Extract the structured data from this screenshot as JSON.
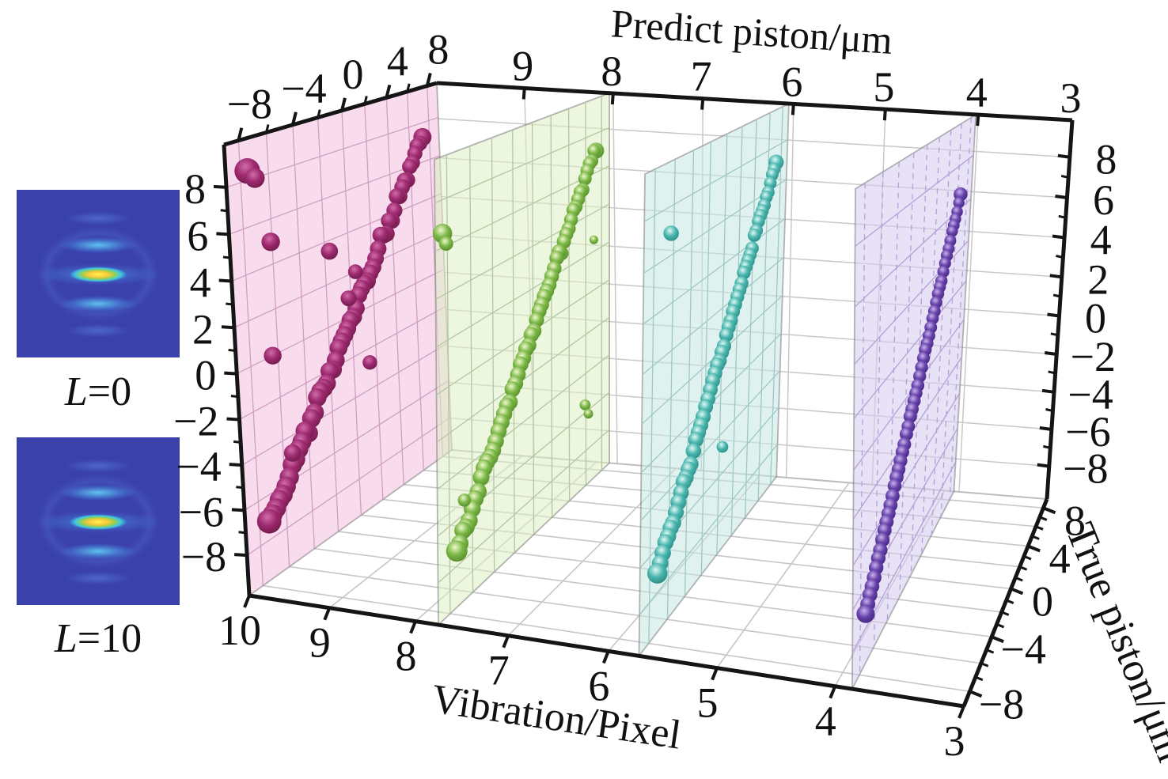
{
  "figure": {
    "axes": {
      "predict": {
        "title": "Predict piston/μm",
        "tick_labels": [
          8,
          6,
          4,
          2,
          0,
          -2,
          -4,
          -6,
          -8
        ],
        "range": [
          -8,
          8
        ],
        "major_step": 2,
        "minor_step": 1
      },
      "vibration": {
        "title": "Vibration/Pixel",
        "tick_labels_bottom": [
          10,
          9,
          8,
          7,
          6,
          5,
          4,
          3
        ],
        "tick_labels_top": [
          9,
          8,
          7,
          6,
          5,
          4,
          3
        ],
        "range": [
          3,
          10
        ]
      },
      "true_piston": {
        "title": "True piston/μm",
        "tick_labels_right": [
          8,
          4,
          0,
          -4,
          -8
        ],
        "tick_labels_top_left": [
          -8,
          -4,
          0,
          4,
          8
        ],
        "range": [
          -8,
          8
        ],
        "major_step": 4,
        "minor_step": 1
      }
    },
    "insets": [
      {
        "label": "L=0",
        "label_var": "L",
        "label_eq": "=0"
      },
      {
        "label": "L=10",
        "label_var": "L",
        "label_eq": "=10"
      }
    ],
    "chart_data": {
      "type": "scatter",
      "projection": "3d",
      "description": "Predicted piston versus true piston at four vibration levels; each translucent vertical plane is one vibration value, points lie along the identity line with sparse outliers",
      "x_axis": {
        "label": "Vibration/Pixel",
        "range": [
          3,
          10
        ],
        "ticks": [
          3,
          4,
          5,
          6,
          7,
          8,
          9,
          10
        ]
      },
      "y_axis": {
        "label": "True piston/μm",
        "range": [
          -8,
          8
        ],
        "ticks": [
          -8,
          -4,
          0,
          4,
          8
        ]
      },
      "z_axis": {
        "label": "Predict piston/μm",
        "range": [
          -8,
          8
        ],
        "ticks": [
          -8,
          -6,
          -4,
          -2,
          0,
          2,
          4,
          6,
          8
        ]
      },
      "grid": true,
      "slices": [
        {
          "vibration": 10,
          "color": "#9e2a70",
          "color_light": "#d06da8",
          "color_dark": "#63173f",
          "plane_fill": "rgba(244,198,228,0.62)",
          "plane_grid": "#cf9fc0",
          "marker_radius": 12,
          "noise": 0.22,
          "identity_line": {
            "from": [
              -7.3,
              -7.3
            ],
            "to": [
              7.3,
              7.3
            ]
          },
          "outliers": [
            [
              -7.5,
              8.4,
              1.35
            ],
            [
              -7.0,
              8.0,
              1.05
            ],
            [
              -6.1,
              5.0,
              1.0
            ],
            [
              -1.6,
              3.5,
              1.0
            ],
            [
              -6.4,
              0.0,
              0.95
            ],
            [
              -5.3,
              -4.8,
              0.95
            ],
            [
              1.4,
              -2.7,
              0.9
            ],
            [
              -0.2,
              0.9,
              0.95
            ],
            [
              0.5,
              2.0,
              0.9
            ]
          ]
        },
        {
          "vibration": 8,
          "color": "#7cb848",
          "color_light": "#eef8cb",
          "color_dark": "#48801f",
          "plane_fill": "rgba(222,238,196,0.55)",
          "plane_grid": "#b5c6a2",
          "marker_radius": 10.5,
          "noise": 0.14,
          "identity_line": {
            "from": [
              -7.4,
              -7.4
            ],
            "to": [
              7.3,
              7.3
            ]
          },
          "outliers": [
            [
              -8.4,
              6.6,
              1.15
            ],
            [
              -8.1,
              6.1,
              0.85
            ],
            [
              7.0,
              2.6,
              0.7
            ],
            [
              5.9,
              -5.6,
              0.85
            ],
            [
              6.3,
              -6.2,
              0.75
            ],
            [
              -6.7,
              -5.4,
              0.8
            ]
          ]
        },
        {
          "vibration": 6,
          "color": "#49b6ae",
          "color_light": "#dff8f3",
          "color_dark": "#237f79",
          "plane_fill": "rgba(198,232,227,0.55)",
          "plane_grid": "#9fc8c2",
          "marker_radius": 10,
          "noise": 0.1,
          "identity_line": {
            "from": [
              -7.2,
              -7.2
            ],
            "to": [
              7.2,
              7.2
            ]
          },
          "outliers": [
            [
              -6.3,
              6.9,
              1.0
            ],
            [
              0.4,
              -4.7,
              0.85
            ]
          ]
        },
        {
          "vibration": 4,
          "color": "#6742ab",
          "color_light": "#c7b2ea",
          "color_dark": "#371e72",
          "plane_fill": "rgba(214,202,240,0.55)",
          "plane_grid": "#b3a1d6",
          "marker_radius": 9,
          "noise": 0.05,
          "identity_line": {
            "from": [
              -7.3,
              -7.3
            ],
            "to": [
              6.6,
              6.6
            ]
          },
          "outliers": []
        }
      ]
    }
  }
}
